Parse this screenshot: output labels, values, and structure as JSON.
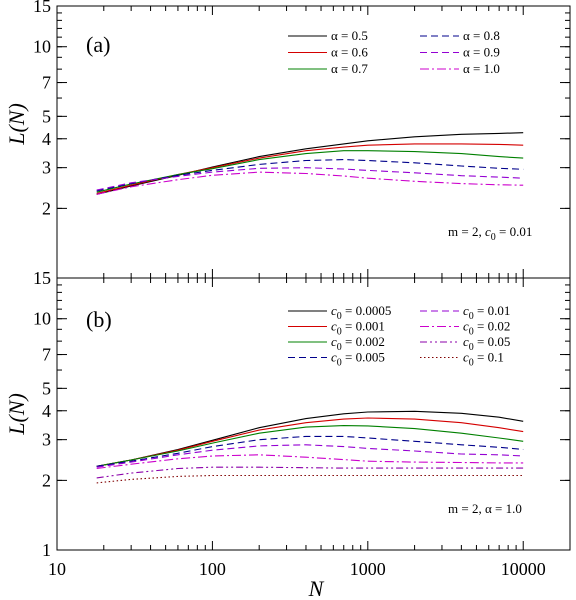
{
  "chart_data": [
    {
      "type": "line",
      "panel_label": "(a)",
      "xlabel": "N",
      "ylabel": "L(N)",
      "x_scale": "log",
      "y_scale": "log",
      "xlim": [
        10,
        20000
      ],
      "ylim": [
        1,
        15
      ],
      "x_ticks": [
        "10",
        "100",
        "1000",
        "10000"
      ],
      "y_ticks": [
        2,
        3,
        4,
        5,
        7,
        10,
        15
      ],
      "y_tick_labels": [
        "2",
        "3",
        "4",
        "5",
        "7",
        "10",
        "15"
      ],
      "legend_placement": "top-right",
      "annotation": "m = 2,   c0 = 0.01",
      "series": [
        {
          "name": "α = 0.5",
          "color": "#000000",
          "dash": "solid",
          "x": [
            18,
            30,
            60,
            100,
            200,
            400,
            700,
            1000,
            2000,
            4000,
            7000,
            10000
          ],
          "y": [
            2.3,
            2.5,
            2.78,
            3.02,
            3.35,
            3.62,
            3.8,
            3.92,
            4.08,
            4.18,
            4.22,
            4.25
          ]
        },
        {
          "name": "α = 0.6",
          "color": "#d40000",
          "dash": "solid",
          "x": [
            18,
            30,
            60,
            100,
            200,
            400,
            700,
            1000,
            2000,
            4000,
            7000,
            10000
          ],
          "y": [
            2.32,
            2.52,
            2.8,
            3.0,
            3.3,
            3.55,
            3.68,
            3.75,
            3.8,
            3.8,
            3.78,
            3.75
          ]
        },
        {
          "name": "α = 0.7",
          "color": "#008000",
          "dash": "solid",
          "x": [
            18,
            30,
            60,
            100,
            200,
            400,
            700,
            1000,
            2000,
            4000,
            7000,
            10000
          ],
          "y": [
            2.35,
            2.55,
            2.8,
            2.97,
            3.25,
            3.45,
            3.55,
            3.55,
            3.52,
            3.45,
            3.35,
            3.3
          ]
        },
        {
          "name": "α = 0.8",
          "color": "#00008b",
          "dash": "dashed",
          "x": [
            18,
            30,
            60,
            100,
            200,
            400,
            700,
            1000,
            2000,
            4000,
            7000,
            10000
          ],
          "y": [
            2.38,
            2.56,
            2.78,
            2.92,
            3.1,
            3.22,
            3.25,
            3.22,
            3.15,
            3.05,
            2.98,
            2.95
          ]
        },
        {
          "name": "α = 0.9",
          "color": "#9400d3",
          "dash": "dashed",
          "x": [
            18,
            30,
            60,
            100,
            200,
            400,
            700,
            1000,
            2000,
            4000,
            7000,
            10000
          ],
          "y": [
            2.4,
            2.58,
            2.75,
            2.87,
            2.98,
            3.0,
            2.96,
            2.92,
            2.85,
            2.77,
            2.73,
            2.7
          ]
        },
        {
          "name": "α = 1.0",
          "color": "#cc00cc",
          "dash": "dashdot",
          "x": [
            18,
            30,
            60,
            100,
            200,
            400,
            700,
            1000,
            2000,
            4000,
            7000,
            10000
          ],
          "y": [
            2.3,
            2.48,
            2.66,
            2.78,
            2.87,
            2.83,
            2.76,
            2.7,
            2.62,
            2.56,
            2.53,
            2.52
          ]
        }
      ]
    },
    {
      "type": "line",
      "panel_label": "(b)",
      "xlabel": "N",
      "ylabel": "L(N)",
      "x_scale": "log",
      "y_scale": "log",
      "xlim": [
        10,
        20000
      ],
      "ylim": [
        1,
        15
      ],
      "x_ticks": [
        "10",
        "100",
        "1000",
        "10000"
      ],
      "y_ticks": [
        1,
        2,
        3,
        4,
        5,
        7,
        10,
        15
      ],
      "y_tick_labels": [
        "1",
        "2",
        "3",
        "4",
        "5",
        "7",
        "10",
        "15"
      ],
      "legend_placement": "top-right",
      "annotation": "m = 2,   α = 1.0",
      "series": [
        {
          "name": "c0 = 0.0005",
          "color": "#000000",
          "dash": "solid",
          "x": [
            18,
            30,
            60,
            100,
            200,
            400,
            700,
            1000,
            2000,
            4000,
            7000,
            10000
          ],
          "y": [
            2.3,
            2.45,
            2.72,
            2.98,
            3.38,
            3.7,
            3.88,
            3.95,
            3.98,
            3.9,
            3.75,
            3.6
          ]
        },
        {
          "name": "c0 = 0.001",
          "color": "#d40000",
          "dash": "solid",
          "x": [
            18,
            30,
            60,
            100,
            200,
            400,
            700,
            1000,
            2000,
            4000,
            7000,
            10000
          ],
          "y": [
            2.3,
            2.45,
            2.7,
            2.95,
            3.3,
            3.55,
            3.68,
            3.72,
            3.68,
            3.55,
            3.38,
            3.25
          ]
        },
        {
          "name": "c0 = 0.002",
          "color": "#008000",
          "dash": "solid",
          "x": [
            18,
            30,
            60,
            100,
            200,
            400,
            700,
            1000,
            2000,
            4000,
            7000,
            10000
          ],
          "y": [
            2.3,
            2.45,
            2.68,
            2.9,
            3.2,
            3.4,
            3.45,
            3.44,
            3.35,
            3.2,
            3.05,
            2.95
          ]
        },
        {
          "name": "c0 = 0.005",
          "color": "#00008b",
          "dash": "dashed",
          "x": [
            18,
            30,
            60,
            100,
            200,
            400,
            700,
            1000,
            2000,
            4000,
            7000,
            10000
          ],
          "y": [
            2.3,
            2.42,
            2.62,
            2.8,
            3.0,
            3.1,
            3.1,
            3.05,
            2.95,
            2.85,
            2.78,
            2.72
          ]
        },
        {
          "name": "c0 = 0.01",
          "color": "#9400d3",
          "dash": "dashed",
          "x": [
            18,
            30,
            60,
            100,
            200,
            400,
            700,
            1000,
            2000,
            4000,
            7000,
            10000
          ],
          "y": [
            2.28,
            2.4,
            2.58,
            2.7,
            2.82,
            2.85,
            2.8,
            2.75,
            2.68,
            2.6,
            2.58,
            2.55
          ]
        },
        {
          "name": "c0 = 0.02",
          "color": "#cc00cc",
          "dash": "dashdot",
          "x": [
            18,
            30,
            60,
            100,
            200,
            400,
            700,
            1000,
            2000,
            4000,
            7000,
            10000
          ],
          "y": [
            2.25,
            2.35,
            2.48,
            2.55,
            2.58,
            2.52,
            2.46,
            2.42,
            2.4,
            2.39,
            2.38,
            2.38
          ]
        },
        {
          "name": "c0 = 0.05",
          "color": "#8b00aa",
          "dash": "dashdotdot",
          "x": [
            18,
            30,
            60,
            100,
            200,
            400,
            700,
            1000,
            2000,
            4000,
            7000,
            10000
          ],
          "y": [
            2.05,
            2.15,
            2.25,
            2.28,
            2.28,
            2.27,
            2.26,
            2.26,
            2.26,
            2.26,
            2.26,
            2.26
          ]
        },
        {
          "name": "c0 = 0.1",
          "color": "#800000",
          "dash": "dotted",
          "x": [
            18,
            30,
            60,
            100,
            200,
            400,
            700,
            1000,
            2000,
            4000,
            7000,
            10000
          ],
          "y": [
            1.95,
            2.02,
            2.08,
            2.1,
            2.1,
            2.1,
            2.1,
            2.1,
            2.1,
            2.1,
            2.1,
            2.1
          ]
        }
      ]
    }
  ]
}
